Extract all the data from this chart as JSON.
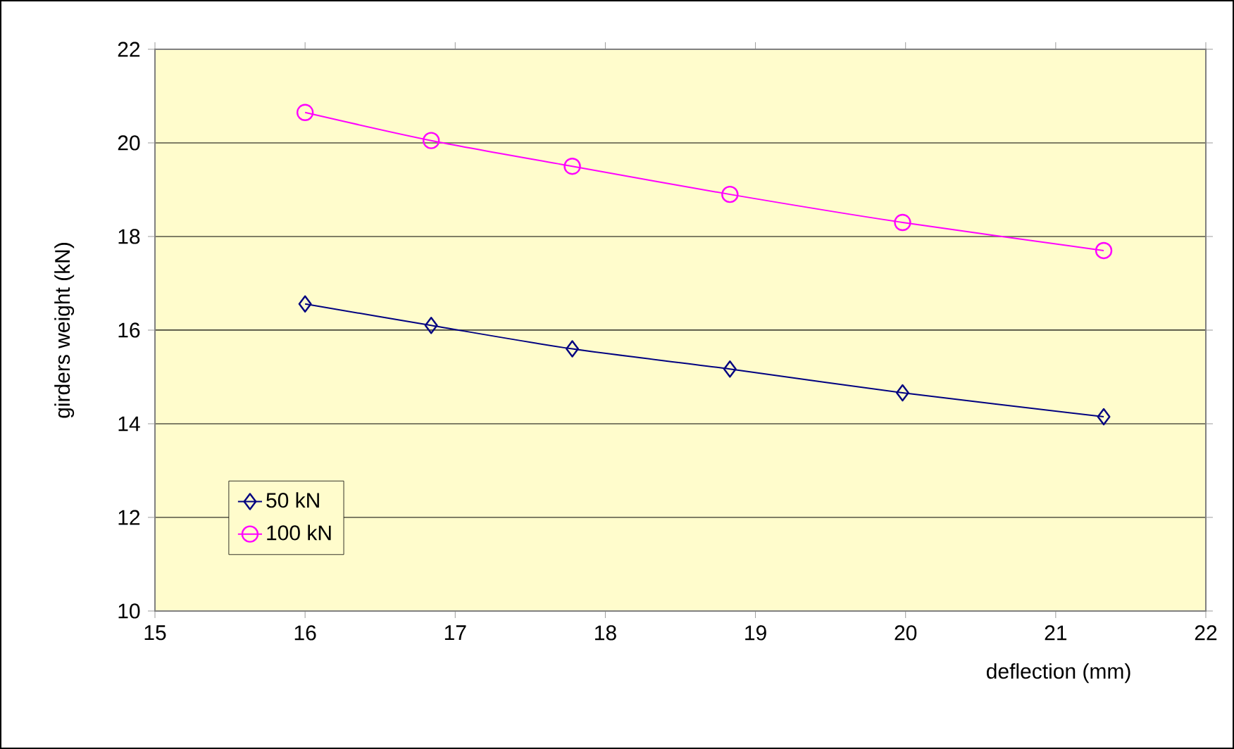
{
  "chart_data": {
    "type": "line",
    "xlabel": "deflection (mm)",
    "ylabel": "girders weight (kN)",
    "xlim": [
      15,
      22
    ],
    "xticks": [
      15,
      16,
      17,
      18,
      19,
      20,
      21,
      22
    ],
    "ylim": [
      10,
      22
    ],
    "yticks": [
      10,
      12,
      14,
      16,
      18,
      20,
      22
    ],
    "grid": "y",
    "legend": "left",
    "line_style": "solid",
    "series": [
      {
        "name": "50 kN",
        "color": "#000080",
        "marker": "diamond",
        "x": [
          16.0,
          16.84,
          17.78,
          18.83,
          19.98,
          21.32
        ],
        "values": [
          16.56,
          16.1,
          15.6,
          15.17,
          14.66,
          14.15
        ]
      },
      {
        "name": "100 kN",
        "color": "#ff00ff",
        "marker": "circle",
        "x": [
          16.0,
          16.84,
          17.78,
          18.83,
          19.98,
          21.32
        ],
        "values": [
          20.65,
          20.05,
          19.5,
          18.9,
          18.3,
          17.7
        ]
      }
    ]
  }
}
